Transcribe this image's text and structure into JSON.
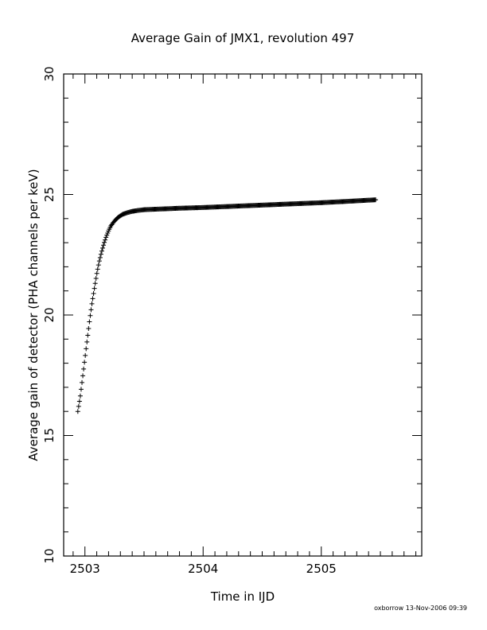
{
  "chart_data": {
    "type": "scatter",
    "title": "Average Gain of JMX1, revolution 497",
    "xlabel": "Time in IJD",
    "ylabel": "Average gain of detector (PHA channels per keV)",
    "xlim": [
      2502.82,
      2505.85
    ],
    "ylim": [
      10,
      30
    ],
    "xticks_major": [
      2503,
      2504,
      2505
    ],
    "xtick_labels": [
      "2503",
      "2504",
      "2505"
    ],
    "yticks_major": [
      10,
      15,
      20,
      25,
      30
    ],
    "ytick_labels": [
      "10",
      "15",
      "20",
      "25",
      "30"
    ],
    "grid": false,
    "marker": "plus",
    "x_start": 2502.94,
    "x_end": 2505.46,
    "series": [
      {
        "points": [
          [
            2502.94,
            16.0
          ],
          [
            2502.96,
            16.6
          ],
          [
            2502.98,
            17.4
          ],
          [
            2503.0,
            18.2
          ],
          [
            2503.02,
            19.0
          ],
          [
            2503.04,
            19.8
          ],
          [
            2503.06,
            20.5
          ],
          [
            2503.08,
            21.1
          ],
          [
            2503.1,
            21.7
          ],
          [
            2503.12,
            22.2
          ],
          [
            2503.14,
            22.6
          ],
          [
            2503.16,
            22.95
          ],
          [
            2503.18,
            23.25
          ],
          [
            2503.2,
            23.5
          ],
          [
            2503.22,
            23.7
          ],
          [
            2503.25,
            23.9
          ],
          [
            2503.28,
            24.05
          ],
          [
            2503.32,
            24.18
          ],
          [
            2503.36,
            24.25
          ],
          [
            2503.4,
            24.3
          ],
          [
            2503.45,
            24.34
          ],
          [
            2503.5,
            24.37
          ],
          [
            2503.6,
            24.39
          ],
          [
            2503.7,
            24.41
          ],
          [
            2503.8,
            24.43
          ],
          [
            2504.0,
            24.46
          ],
          [
            2504.2,
            24.5
          ],
          [
            2504.4,
            24.54
          ],
          [
            2504.6,
            24.58
          ],
          [
            2504.8,
            24.62
          ],
          [
            2505.0,
            24.66
          ],
          [
            2505.2,
            24.71
          ],
          [
            2505.46,
            24.78
          ]
        ]
      }
    ]
  },
  "footer": "oxborrow 13-Nov-2006 09:39"
}
